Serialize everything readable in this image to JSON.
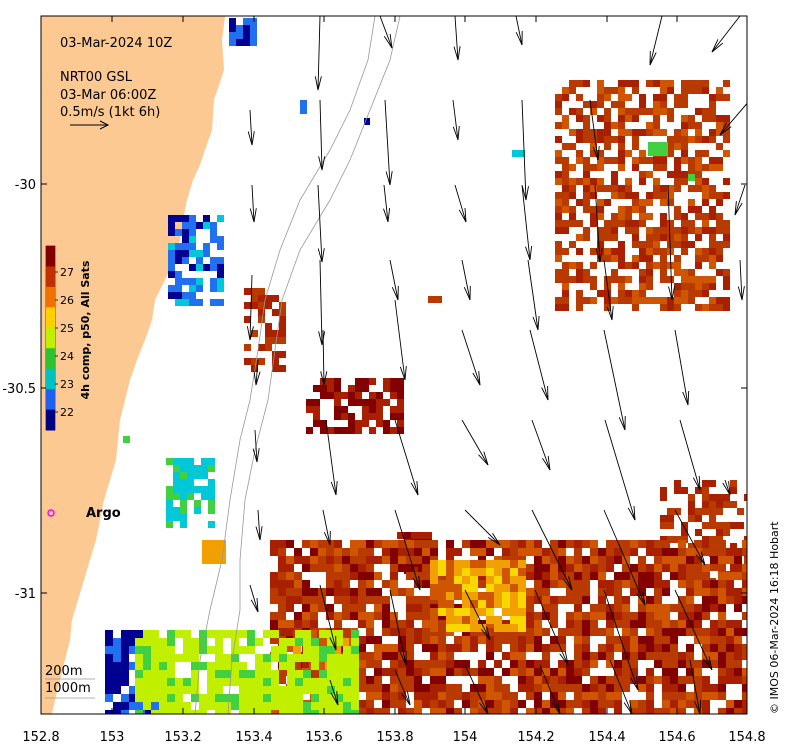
{
  "header": {
    "datetime": "03-Mar-2024 10Z",
    "product": "NRT00 GSL",
    "product_time": "03-Mar 06:00Z",
    "scale_text": "0.5m/s (1kt 6h)"
  },
  "colorbar": {
    "title": "4h comp, p50, All Sats",
    "ticks": [
      "27",
      "26",
      "25",
      "24",
      "23",
      "22"
    ],
    "colors": [
      "#800000",
      "#c03000",
      "#f07000",
      "#ffd000",
      "#c0f000",
      "#30c030",
      "#00c0c0",
      "#2060f0",
      "#000080"
    ]
  },
  "axes": {
    "x_ticks": [
      "152.8",
      "153",
      "153.2",
      "153.4",
      "153.6",
      "153.8",
      "154",
      "154.2",
      "154.4",
      "154.6",
      "154.8"
    ],
    "y_ticks": [
      "-30",
      "-30.5",
      "-31"
    ]
  },
  "labels": {
    "argo": "Argo",
    "depth_200": "200m",
    "depth_1000": "1000m",
    "credit": "© IMOS 06-Mar-2024 16:18 Hobart"
  },
  "colors": {
    "land": "#fcc993",
    "argo_marker": "#ff00ff",
    "isobath": "#999999"
  }
}
